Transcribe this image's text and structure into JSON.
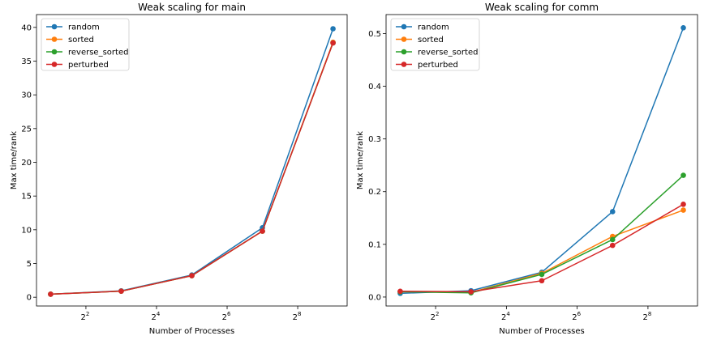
{
  "colors": {
    "random": "#1f77b4",
    "sorted": "#ff7f0e",
    "reverse_sorted": "#2ca02c",
    "perturbed": "#d62728"
  },
  "chart_data": [
    {
      "type": "line",
      "title": "Weak scaling for main",
      "xlabel": "Number of Processes",
      "ylabel": "Max time/rank",
      "xscale": "log2",
      "x": [
        2,
        8,
        32,
        128,
        512
      ],
      "xticks": [
        {
          "base": "2",
          "exp": "2"
        },
        {
          "base": "2",
          "exp": "4"
        },
        {
          "base": "2",
          "exp": "6"
        },
        {
          "base": "2",
          "exp": "8"
        }
      ],
      "xlim_log2": [
        0.6,
        9.4
      ],
      "ylim": [
        -1.3,
        41.9
      ],
      "yticks": [
        0,
        5,
        10,
        15,
        20,
        25,
        30,
        35,
        40
      ],
      "ytick_labels": [
        "0",
        "5",
        "10",
        "15",
        "20",
        "25",
        "30",
        "35",
        "40"
      ],
      "grid": false,
      "legend_position": "upper-left",
      "series": [
        {
          "name": "random",
          "values": [
            0.45,
            0.95,
            3.3,
            10.3,
            39.8
          ]
        },
        {
          "name": "sorted",
          "values": [
            0.45,
            0.9,
            3.2,
            9.8,
            37.8
          ]
        },
        {
          "name": "reverse_sorted",
          "values": [
            0.45,
            0.9,
            3.2,
            9.8,
            37.7
          ]
        },
        {
          "name": "perturbed",
          "values": [
            0.45,
            0.9,
            3.2,
            9.8,
            37.7
          ]
        }
      ]
    },
    {
      "type": "line",
      "title": "Weak scaling for comm",
      "xlabel": "Number of Processes",
      "ylabel": "Max time/rank",
      "xscale": "log2",
      "x": [
        2,
        8,
        32,
        128,
        512
      ],
      "xticks": [
        {
          "base": "2",
          "exp": "2"
        },
        {
          "base": "2",
          "exp": "4"
        },
        {
          "base": "2",
          "exp": "6"
        },
        {
          "base": "2",
          "exp": "8"
        }
      ],
      "xlim_log2": [
        0.6,
        9.4
      ],
      "ylim": [
        -0.017,
        0.536
      ],
      "yticks": [
        0.0,
        0.1,
        0.2,
        0.3,
        0.4,
        0.5
      ],
      "ytick_labels": [
        "0.0",
        "0.1",
        "0.2",
        "0.3",
        "0.4",
        "0.5"
      ],
      "grid": false,
      "legend_position": "upper-left",
      "series": [
        {
          "name": "random",
          "values": [
            0.007,
            0.012,
            0.047,
            0.162,
            0.511
          ]
        },
        {
          "name": "sorted",
          "values": [
            0.01,
            0.009,
            0.045,
            0.115,
            0.165
          ]
        },
        {
          "name": "reverse_sorted",
          "values": [
            0.01,
            0.008,
            0.043,
            0.109,
            0.231
          ]
        },
        {
          "name": "perturbed",
          "values": [
            0.011,
            0.01,
            0.031,
            0.098,
            0.176
          ]
        }
      ]
    }
  ]
}
